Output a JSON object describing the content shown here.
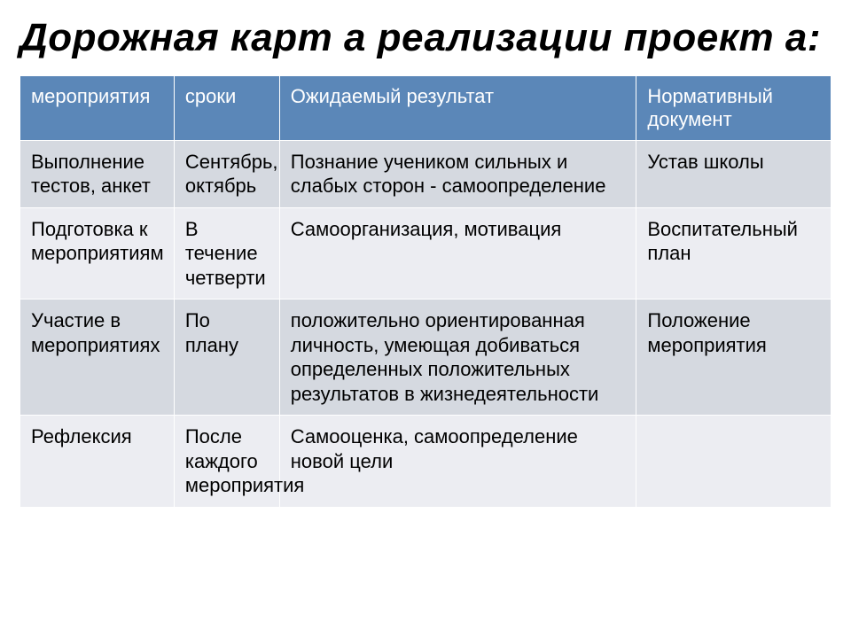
{
  "title": "Дорожная карт а реализации проект а:",
  "table": {
    "type": "table",
    "header_bg": "#5b87b8",
    "header_fg": "#ffffff",
    "row_bg_odd": "#d5d9e0",
    "row_bg_even": "#ecedf2",
    "border_color": "#ffffff",
    "font_size": 22,
    "col_widths_pct": [
      19,
      13,
      44,
      24
    ],
    "columns": [
      "мероприятия",
      "сроки",
      "Ожидаемый результат",
      "Нормативный документ"
    ],
    "rows": [
      [
        "Выполнение тестов, анкет",
        "Сентябрь, октябрь",
        "Познание учеником сильных и слабых сторон - самоопределение",
        "Устав школы"
      ],
      [
        "Подготовка к мероприятиям",
        "В течение четверти",
        "Самоорганизация, мотивация",
        "Воспитательный план"
      ],
      [
        "Участие в мероприятиях",
        "По плану",
        "положительно ориентированная личность, умеющая добиваться определенных положительных результатов в жизнедеятельности",
        "Положение мероприятия"
      ],
      [
        "Рефлексия",
        "После каждого мероприятия",
        "Самооценка, самоопределение новой цели",
        ""
      ]
    ]
  }
}
